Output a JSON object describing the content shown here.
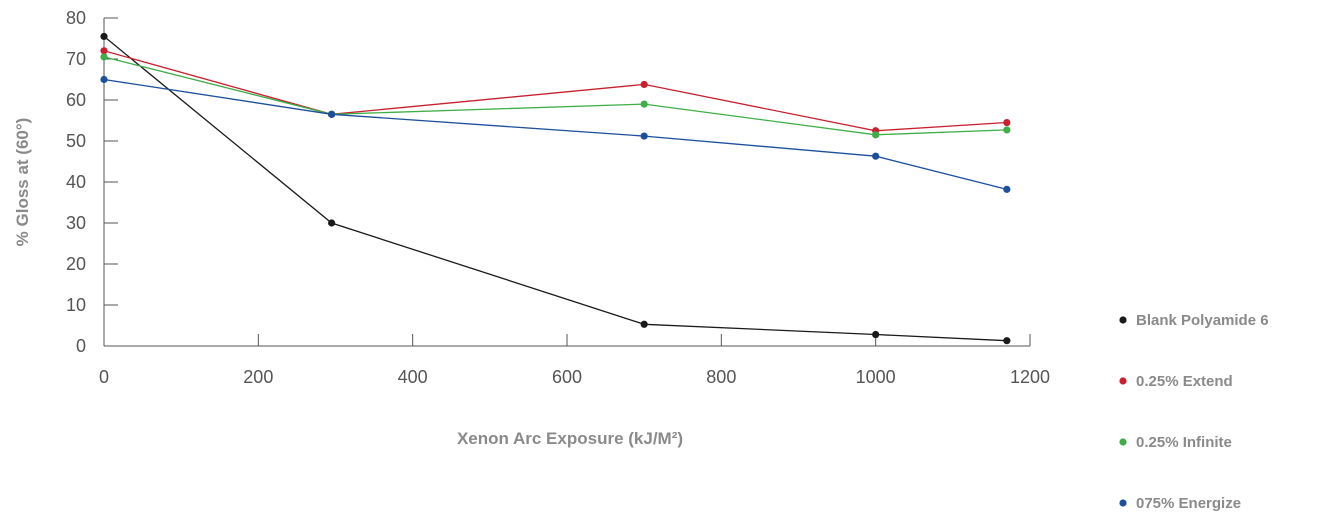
{
  "chart_data": {
    "type": "line",
    "title": "",
    "xlabel": "Xenon Arc Exposure (kJ/M²)",
    "ylabel": "% Gloss at (60°)",
    "xlim": [
      0,
      1200
    ],
    "ylim": [
      0,
      80
    ],
    "xticks": [
      0,
      200,
      400,
      600,
      800,
      1000,
      1200
    ],
    "yticks": [
      0,
      10,
      20,
      30,
      40,
      50,
      60,
      70,
      80
    ],
    "x": [
      0,
      295,
      700,
      1000,
      1170
    ],
    "grid": false,
    "legend_position": "right",
    "series": [
      {
        "name": "Blank Polyamide 6",
        "color": "#1a1a1a",
        "values": [
          75.5,
          30,
          5.3,
          2.8,
          1.3
        ]
      },
      {
        "name": "0.25% Extend",
        "color": "#c8202f",
        "values": [
          72,
          56.5,
          63.8,
          52.5,
          54.5
        ]
      },
      {
        "name": "0.25% Infinite",
        "color": "#3fae49",
        "values": [
          70.5,
          56.5,
          59,
          51.5,
          52.7
        ]
      },
      {
        "name": "075% Energize",
        "color": "#1c4f9c",
        "values": [
          65,
          56.5,
          51.2,
          46.3,
          38.2
        ]
      }
    ]
  }
}
